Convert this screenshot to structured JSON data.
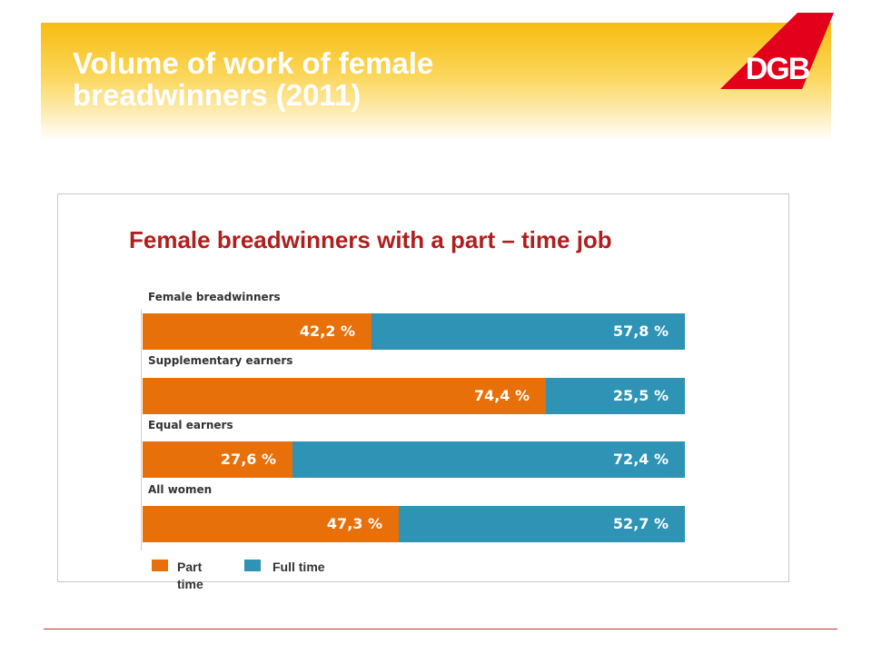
{
  "slide": {
    "title": "Volume of work of female breadwinners  (2011)",
    "logo_text": "DGB"
  },
  "colors": {
    "banner": "#f7bd10",
    "logo": "#e2001a",
    "part_time": "#e8700a",
    "full_time": "#2e93b5",
    "chart_title": "#b01e1e"
  },
  "chart_data": {
    "type": "bar",
    "orientation": "horizontal",
    "stacked": true,
    "normalized_percent": true,
    "title": "Female breadwinners with a part – time job",
    "categories": [
      "Female breadwinners",
      "Supplementary earners",
      "Equal earners",
      "All women"
    ],
    "series": [
      {
        "name": "Part time",
        "values": [
          42.2,
          74.4,
          27.6,
          47.3
        ],
        "labels": [
          "42,2 %",
          "74,4 %",
          "27,6 %",
          "47,3 %"
        ]
      },
      {
        "name": "Full time",
        "values": [
          57.8,
          25.5,
          72.4,
          52.7
        ],
        "labels": [
          "57,8 %",
          "25,5 %",
          "72,4 %",
          "52,7 %"
        ]
      }
    ],
    "xlim": [
      0,
      100
    ],
    "legend_position": "bottom-left",
    "grid": false
  }
}
